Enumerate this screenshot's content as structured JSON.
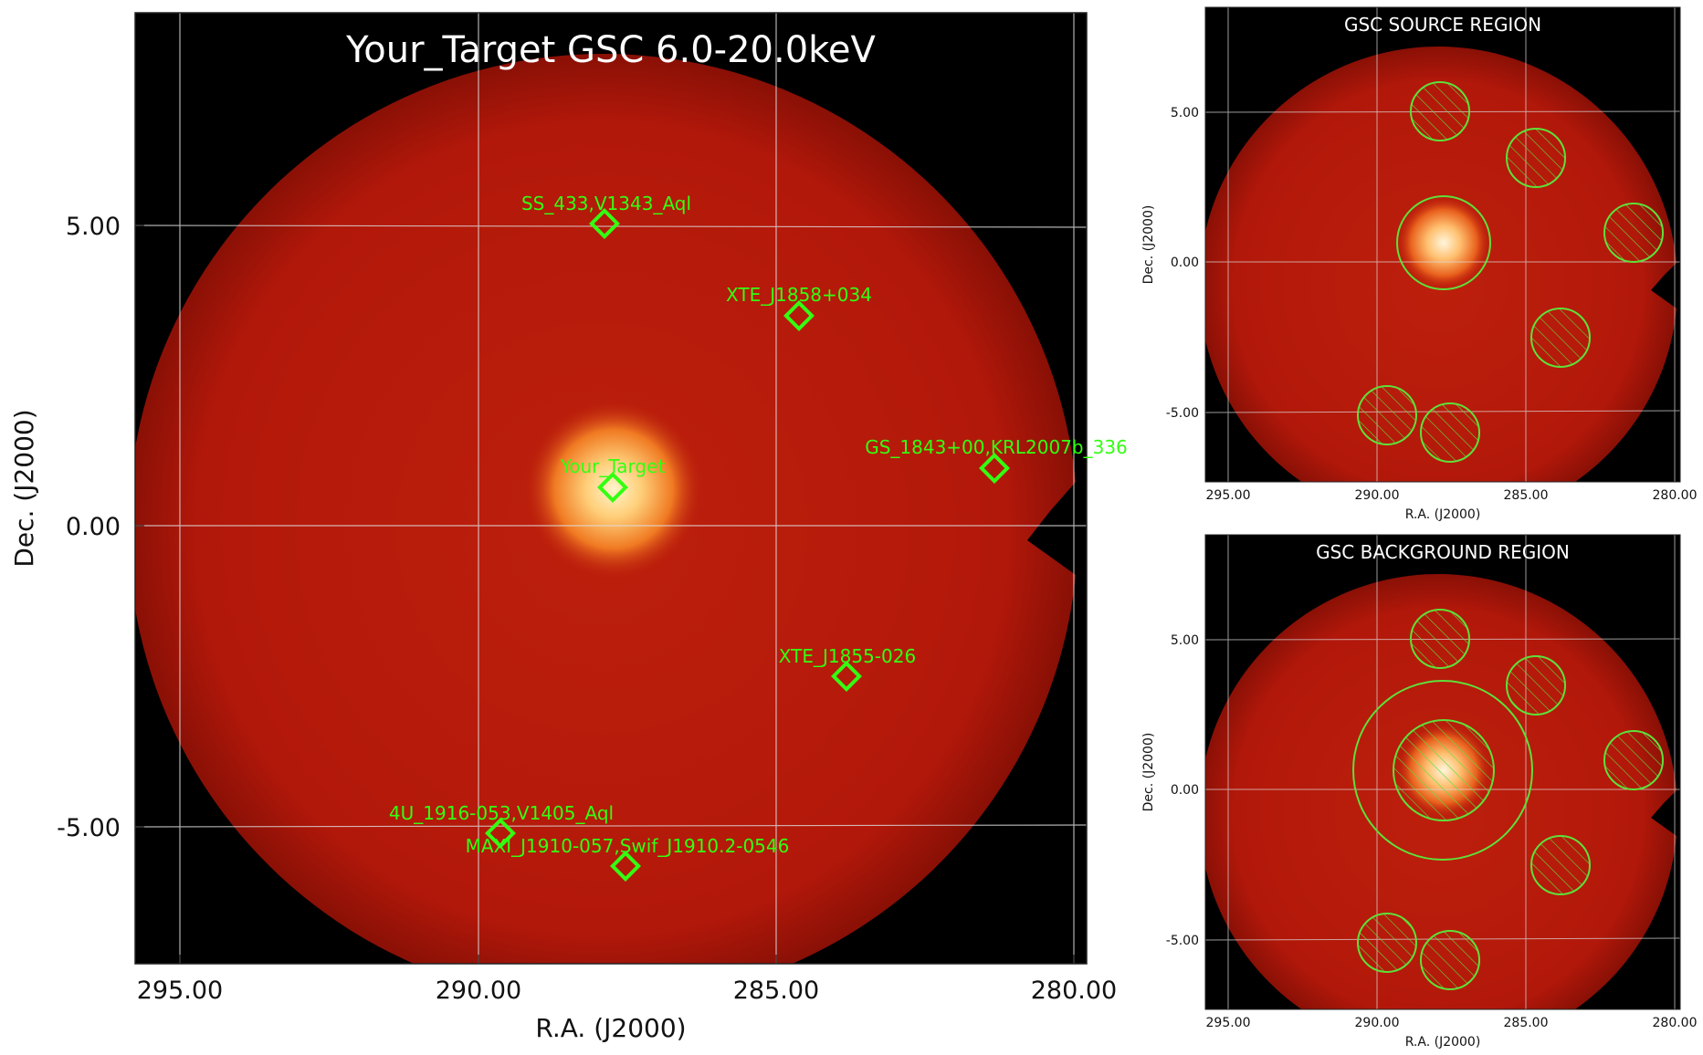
{
  "main_panel": {
    "title": "Your_Target GSC 6.0-20.0keV",
    "xlabel": "R.A. (J2000)",
    "ylabel": "Dec. (J2000)",
    "x_ticks": [
      "295.00",
      "290.00",
      "285.00",
      "280.00"
    ],
    "y_ticks": [
      "5.00",
      "0.00",
      "-5.00"
    ],
    "sources": [
      {
        "name": "SS_433,V1343_Aql",
        "ra": 287.9,
        "dec": 5.0
      },
      {
        "name": "XTE_J1858+034",
        "ra": 284.6,
        "dec": 3.5
      },
      {
        "name": "Your_Target",
        "ra": 287.8,
        "dec": 0.6
      },
      {
        "name": "GS_1843+00,KRL2007b_336",
        "ra": 281.4,
        "dec": 0.95
      },
      {
        "name": "XTE_J1855-026",
        "ra": 283.8,
        "dec": -2.5
      },
      {
        "name": "4U_1916-053,V1405_Aql",
        "ra": 289.6,
        "dec": -5.1
      },
      {
        "name": "MAXI_J1910-057,Swif_J1910.2-0546",
        "ra": 287.5,
        "dec": -5.7
      }
    ]
  },
  "source_panel": {
    "title": "GSC SOURCE REGION",
    "xlabel": "R.A. (J2000)",
    "ylabel": "Dec. (J2000)",
    "x_ticks": [
      "295.00",
      "290.00",
      "285.00",
      "280.00"
    ],
    "y_ticks": [
      "5.00",
      "0.00",
      "-5.00"
    ]
  },
  "background_panel": {
    "title": "GSC BACKGROUND REGION",
    "xlabel": "R.A. (J2000)",
    "ylabel": "Dec. (J2000)",
    "x_ticks": [
      "295.00",
      "290.00",
      "285.00",
      "280.00"
    ],
    "y_ticks": [
      "5.00",
      "0.00",
      "-5.00"
    ]
  },
  "colors": {
    "map_red": "#b81a0a",
    "source_glow": "#ffe2a8",
    "marker_green": "#33ff11",
    "region_green": "#5ee03a",
    "background": "#000000"
  }
}
